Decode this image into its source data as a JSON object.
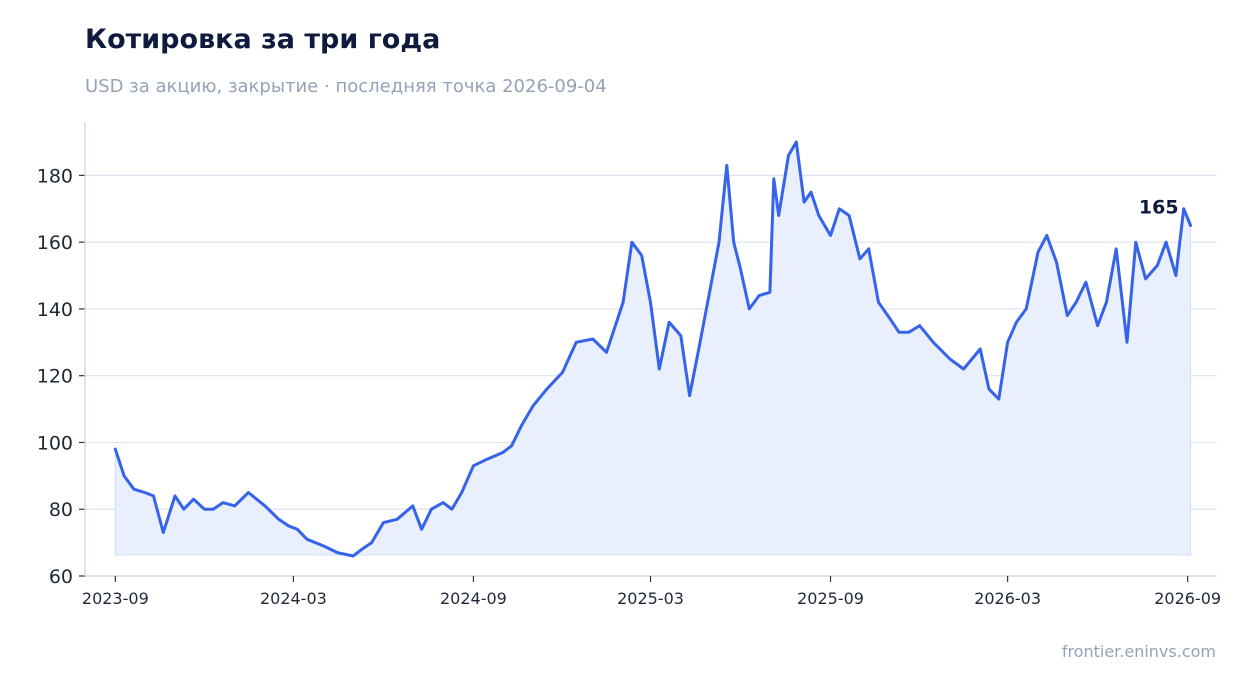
{
  "header": {
    "title": "Котировка за три года",
    "subtitle": "USD за акцию, закрытие · последняя точка 2026-09-04"
  },
  "footer": {
    "source": "frontier.eninvs.com"
  },
  "colors": {
    "line": "#3563e9",
    "area": "#e9effd",
    "grid": "#dde3ef",
    "axis": "#c9d2e3",
    "text": "#1f2937"
  },
  "chart_data": {
    "type": "area",
    "title": "Котировка за три года",
    "xlabel": "",
    "ylabel": "",
    "ylim": [
      60,
      196
    ],
    "xlim": [
      "2023-08-01",
      "2026-10-01"
    ],
    "grid": true,
    "x_ticks": [
      "2023-09",
      "2024-03",
      "2024-09",
      "2025-03",
      "2025-09",
      "2026-03",
      "2026-09"
    ],
    "y_ticks": [
      60,
      80,
      100,
      120,
      140,
      160,
      180
    ],
    "last_value_label": "165",
    "series": [
      {
        "x": [
          "2023-09-01",
          "2023-09-10",
          "2023-09-20",
          "2023-10-01",
          "2023-10-10",
          "2023-10-20",
          "2023-11-01",
          "2023-11-10",
          "2023-11-20",
          "2023-12-01",
          "2023-12-10",
          "2023-12-20",
          "2024-01-01",
          "2024-01-15",
          "2024-02-01",
          "2024-02-15",
          "2024-02-25",
          "2024-03-05",
          "2024-03-15",
          "2024-04-01",
          "2024-04-15",
          "2024-05-01",
          "2024-05-10",
          "2024-05-20",
          "2024-06-01",
          "2024-06-15",
          "2024-07-01",
          "2024-07-10",
          "2024-07-20",
          "2024-08-01",
          "2024-08-10",
          "2024-08-20",
          "2024-09-01",
          "2024-09-15",
          "2024-10-01",
          "2024-10-10",
          "2024-10-20",
          "2024-11-01",
          "2024-11-15",
          "2024-12-01",
          "2024-12-15",
          "2025-01-01",
          "2025-01-15",
          "2025-02-01",
          "2025-02-10",
          "2025-02-20",
          "2025-03-01",
          "2025-03-10",
          "2025-03-20",
          "2025-04-01",
          "2025-04-10",
          "2025-04-20",
          "2025-05-01",
          "2025-05-10",
          "2025-05-18",
          "2025-05-25",
          "2025-06-01",
          "2025-06-10",
          "2025-06-20",
          "2025-07-01",
          "2025-07-05",
          "2025-07-10",
          "2025-07-20",
          "2025-07-28",
          "2025-08-05",
          "2025-08-12",
          "2025-08-20",
          "2025-09-01",
          "2025-09-10",
          "2025-09-20",
          "2025-10-01",
          "2025-10-10",
          "2025-10-20",
          "2025-11-01",
          "2025-11-10",
          "2025-11-20",
          "2025-12-01",
          "2025-12-15",
          "2026-01-01",
          "2026-01-15",
          "2026-02-01",
          "2026-02-10",
          "2026-02-20",
          "2026-03-01",
          "2026-03-10",
          "2026-03-20",
          "2026-04-01",
          "2026-04-10",
          "2026-04-20",
          "2026-05-01",
          "2026-05-10",
          "2026-05-20",
          "2026-06-01",
          "2026-06-10",
          "2026-06-20",
          "2026-07-01",
          "2026-07-10",
          "2026-07-20",
          "2026-08-01",
          "2026-08-10",
          "2026-08-20",
          "2026-08-28",
          "2026-09-04"
        ],
        "values": [
          98,
          90,
          86,
          85,
          84,
          73,
          84,
          80,
          83,
          80,
          80,
          82,
          81,
          85,
          81,
          77,
          75,
          74,
          71,
          69,
          67,
          66,
          68,
          70,
          76,
          77,
          81,
          74,
          80,
          82,
          80,
          85,
          93,
          95,
          97,
          99,
          105,
          111,
          116,
          121,
          130,
          131,
          127,
          142,
          160,
          156,
          142,
          122,
          136,
          132,
          114,
          129,
          146,
          160,
          183,
          160,
          152,
          140,
          144,
          145,
          179,
          168,
          186,
          190,
          172,
          175,
          168,
          162,
          170,
          168,
          155,
          158,
          142,
          137,
          133,
          133,
          135,
          130,
          125,
          122,
          128,
          116,
          113,
          130,
          136,
          140,
          157,
          162,
          154,
          138,
          142,
          148,
          135,
          142,
          158,
          130,
          160,
          149,
          153,
          160,
          150,
          170,
          165
        ]
      }
    ]
  }
}
